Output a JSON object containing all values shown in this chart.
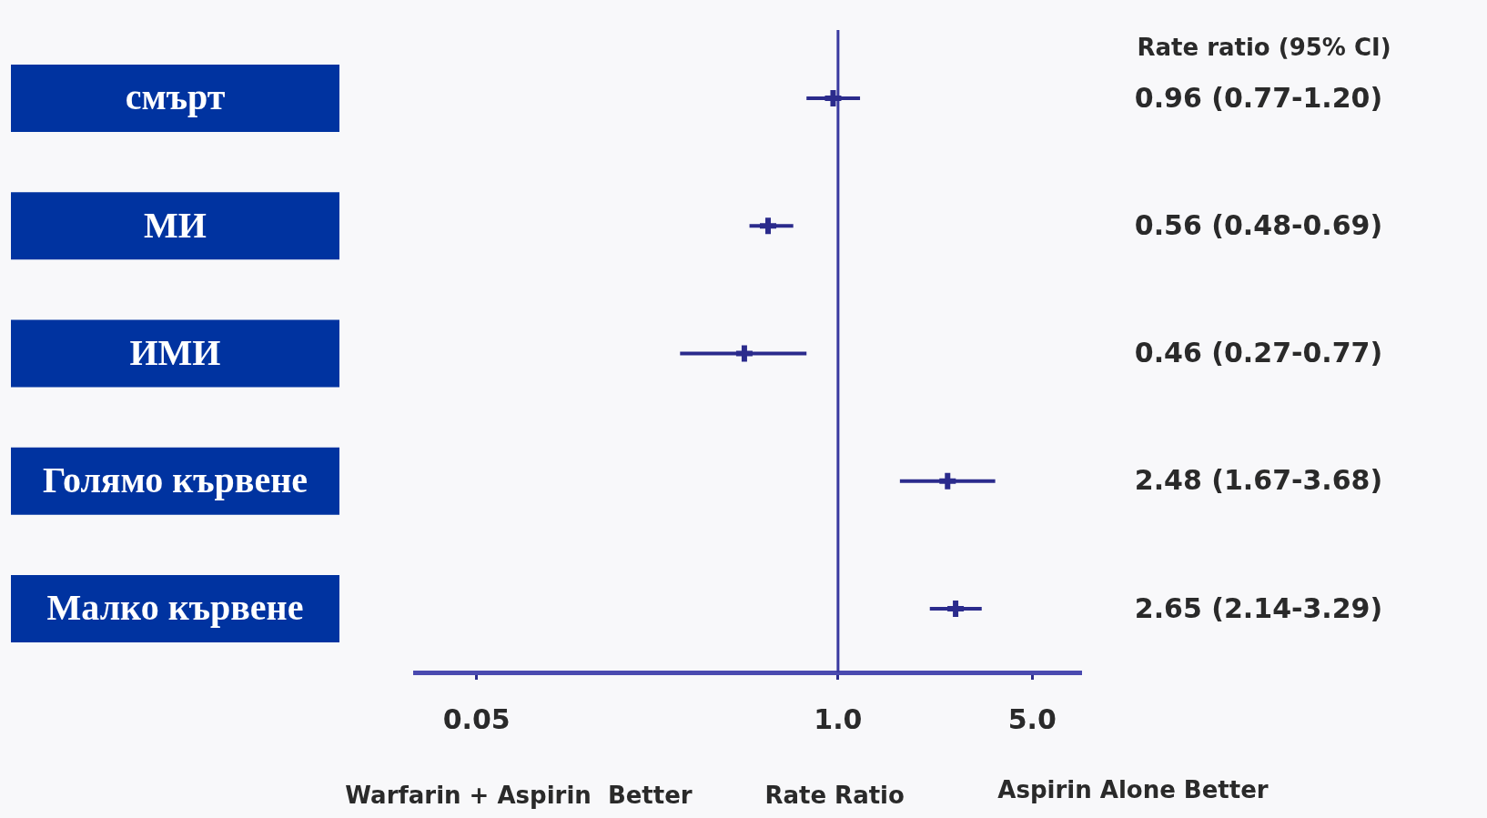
{
  "chart_data": {
    "type": "scatter",
    "orientation": "horizontal",
    "categories": [
      "смърт",
      "МИ",
      "ИМИ",
      "Голямо кървене",
      "Малко кървене"
    ],
    "values": [
      0.96,
      0.56,
      0.46,
      2.48,
      2.65
    ],
    "errors": [
      [
        0.77,
        1.2
      ],
      [
        0.48,
        0.69
      ],
      [
        0.27,
        0.77
      ],
      [
        1.67,
        3.68
      ],
      [
        2.14,
        3.29
      ]
    ],
    "value_labels": [
      "0.96 (0.77-1.20)",
      "0.56 (0.48-0.69)",
      "0.46 (0.27-0.77)",
      "2.48 (1.67-3.68)",
      "2.65 (2.14-3.29)"
    ],
    "color": "#2b2b8c",
    "marker": "cross",
    "log": "x",
    "xlim": [
      0.03,
      7.5
    ],
    "xticks": [
      {
        "value": 0.05,
        "label": "0.05"
      },
      {
        "value": 1,
        "label": "1.0"
      },
      {
        "value": 5,
        "label": "5.0"
      }
    ],
    "xlabel": "Rate Ratio",
    "grid": false,
    "legend": false,
    "ref_lines": [
      {
        "axis": "x",
        "value": 1,
        "color": "#3a3aa0"
      }
    ],
    "annotations": [
      "Rate ratio (95% CI)",
      "Warfarin + Aspirin  Better",
      "Aspirin Alone Better"
    ]
  }
}
